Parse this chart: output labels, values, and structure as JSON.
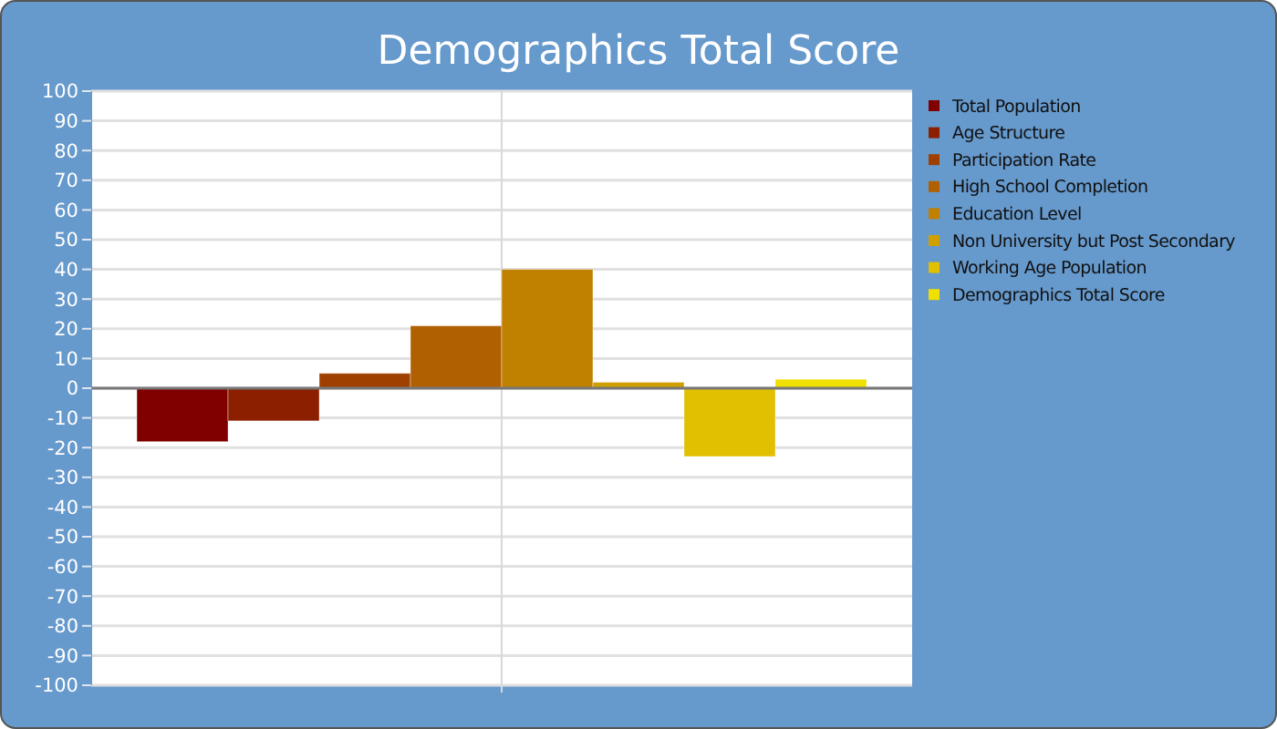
{
  "chart_data": {
    "type": "bar",
    "title": "Demographics Total Score",
    "categories": [
      null
    ],
    "series": [
      {
        "name": "Total Population",
        "color": "#800000",
        "values": [
          -18
        ]
      },
      {
        "name": "Age Structure",
        "color": "#8c1f00",
        "values": [
          -11
        ]
      },
      {
        "name": "Participation Rate",
        "color": "#a04000",
        "values": [
          5
        ]
      },
      {
        "name": "High School Completion",
        "color": "#b06000",
        "values": [
          21
        ]
      },
      {
        "name": "Education Level",
        "color": "#c08000",
        "values": [
          40
        ]
      },
      {
        "name": "Non University but Post Secondary",
        "color": "#d0a000",
        "values": [
          2
        ]
      },
      {
        "name": "Working Age Population",
        "color": "#e0c000",
        "values": [
          -23
        ]
      },
      {
        "name": "Demographics Total Score",
        "color": "#f0e000",
        "values": [
          3
        ]
      }
    ],
    "ylim": [
      -100,
      100
    ],
    "yticks": [
      -100,
      -90,
      -80,
      -70,
      -60,
      -50,
      -40,
      -30,
      -20,
      -10,
      0,
      10,
      20,
      30,
      40,
      50,
      60,
      70,
      80,
      90,
      100
    ],
    "grid": true,
    "legend": "right"
  }
}
